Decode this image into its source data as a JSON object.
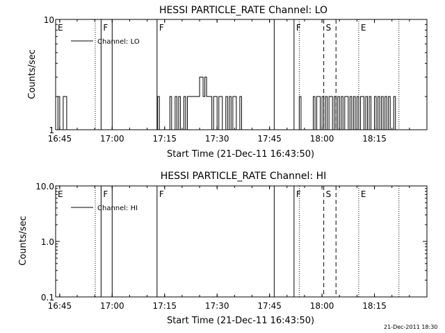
{
  "stamp": "21-Dec-2011 18:30",
  "chart_data": [
    {
      "type": "line",
      "title": "HESSI PARTICLE_RATE Channel: LO",
      "ylabel": "Counts/sec",
      "xlabel": "Start Time (21-Dec-11 16:43:50)",
      "xlim": [
        "16:43:50",
        "18:30:00"
      ],
      "ylim": [
        1,
        10
      ],
      "yscale": "log",
      "ytick_labels": [
        "1",
        "10"
      ],
      "xtick_labels": [
        "16:45",
        "17:00",
        "17:15",
        "17:30",
        "17:45",
        "18:00",
        "18:15"
      ],
      "legend": "Channel: LO",
      "flags": [
        {
          "label": "E",
          "time": "16:43:50",
          "style": "none"
        },
        {
          "label": "",
          "time": "16:55:10",
          "style": "dotted"
        },
        {
          "label": "F",
          "time": "16:56:50",
          "style": "solid"
        },
        {
          "label": "",
          "time": "17:00:00",
          "style": "solid"
        },
        {
          "label": "F",
          "time": "17:12:50",
          "style": "solid"
        },
        {
          "label": "",
          "time": "17:46:20",
          "style": "solid"
        },
        {
          "label": "F",
          "time": "17:52:00",
          "style": "solid"
        },
        {
          "label": "",
          "time": "17:53:30",
          "style": "dotted"
        },
        {
          "label": "S",
          "time": "18:00:30",
          "style": "dashed"
        },
        {
          "label": "",
          "time": "18:04:00",
          "style": "dashed"
        },
        {
          "label": "E",
          "time": "18:10:30",
          "style": "dotted"
        },
        {
          "label": "",
          "time": "18:22:00",
          "style": "dotted"
        }
      ],
      "series": [
        {
          "name": "Channel: LO",
          "x": [
            "16:44:00",
            "16:44:30",
            "16:45:00",
            "16:45:30",
            "16:46:00",
            "16:46:30",
            "16:47:00",
            "16:47:30",
            "17:12:30",
            "17:13:00",
            "17:13:30",
            "17:16:30",
            "17:17:00",
            "17:17:30",
            "17:18:00",
            "17:18:30",
            "17:19:00",
            "17:19:30",
            "17:20:00",
            "17:20:30",
            "17:21:00",
            "17:21:30",
            "17:22:00",
            "17:22:30",
            "17:23:00",
            "17:23:30",
            "17:24:00",
            "17:24:30",
            "17:25:00",
            "17:25:30",
            "17:26:00",
            "17:26:30",
            "17:27:00",
            "17:27:30",
            "17:28:00",
            "17:28:30",
            "17:29:00",
            "17:29:30",
            "17:30:00",
            "17:30:30",
            "17:31:00",
            "17:31:30",
            "17:32:00",
            "17:32:30",
            "17:33:00",
            "17:33:30",
            "17:34:00",
            "17:34:30",
            "17:35:00",
            "17:35:30",
            "17:36:00",
            "17:36:30",
            "17:37:00",
            "17:53:00",
            "17:53:30",
            "17:54:00",
            "17:57:30",
            "17:58:00",
            "17:58:30",
            "17:59:00",
            "17:59:30",
            "18:00:00",
            "18:00:30",
            "18:01:00",
            "18:01:30",
            "18:02:00",
            "18:02:30",
            "18:03:00",
            "18:03:30",
            "18:04:00",
            "18:04:30",
            "18:05:00",
            "18:05:30",
            "18:06:00",
            "18:06:30",
            "18:07:00",
            "18:07:30",
            "18:08:00",
            "18:08:30",
            "18:09:00",
            "18:09:30",
            "18:10:00",
            "18:10:30",
            "18:11:00",
            "18:11:30",
            "18:12:00",
            "18:12:30",
            "18:13:00",
            "18:13:30",
            "18:14:00",
            "18:14:30",
            "18:15:00",
            "18:15:30",
            "18:16:00",
            "18:16:30",
            "18:17:00",
            "18:17:30",
            "18:18:00",
            "18:18:30",
            "18:19:00",
            "18:19:30",
            "18:20:00",
            "18:20:30",
            "18:21:00"
          ],
          "y": [
            1,
            2,
            1,
            1,
            2,
            2,
            1,
            1,
            1,
            2,
            1,
            2,
            1,
            1,
            2,
            1,
            2,
            1,
            1,
            2,
            1,
            2,
            2,
            2,
            2,
            2,
            2,
            2,
            3,
            3,
            2,
            3,
            2,
            2,
            2,
            1,
            2,
            2,
            1,
            2,
            2,
            1,
            1,
            2,
            1,
            2,
            1,
            2,
            2,
            1,
            1,
            2,
            1,
            1,
            2,
            1,
            2,
            1,
            2,
            2,
            1,
            2,
            1,
            2,
            1,
            2,
            2,
            1,
            2,
            1,
            2,
            1,
            2,
            1,
            2,
            2,
            1,
            2,
            1,
            2,
            1,
            2,
            1,
            2,
            2,
            1,
            2,
            1,
            2,
            1,
            1,
            2,
            1,
            2,
            1,
            2,
            1,
            2,
            1,
            2,
            1,
            1,
            2,
            1
          ]
        }
      ]
    },
    {
      "type": "line",
      "title": "HESSI PARTICLE_RATE Channel: HI",
      "ylabel": "Counts/sec",
      "xlabel": "Start Time (21-Dec-11 16:43:50)",
      "xlim": [
        "16:43:50",
        "18:30:00"
      ],
      "ylim": [
        0.1,
        10.0
      ],
      "yscale": "log",
      "ytick_labels": [
        "0.1",
        "1.0",
        "10.0"
      ],
      "xtick_labels": [
        "16:45",
        "17:00",
        "17:15",
        "17:30",
        "17:45",
        "18:00",
        "18:15"
      ],
      "legend": "Channel: HI",
      "flags": [
        {
          "label": "E",
          "time": "16:43:50",
          "style": "none"
        },
        {
          "label": "",
          "time": "16:55:10",
          "style": "dotted"
        },
        {
          "label": "F",
          "time": "16:56:50",
          "style": "solid"
        },
        {
          "label": "",
          "time": "17:00:00",
          "style": "solid"
        },
        {
          "label": "F",
          "time": "17:12:50",
          "style": "solid"
        },
        {
          "label": "",
          "time": "17:46:20",
          "style": "solid"
        },
        {
          "label": "F",
          "time": "17:52:00",
          "style": "solid"
        },
        {
          "label": "",
          "time": "17:53:30",
          "style": "dotted"
        },
        {
          "label": "S",
          "time": "18:00:30",
          "style": "dashed"
        },
        {
          "label": "",
          "time": "18:04:00",
          "style": "dashed"
        },
        {
          "label": "E",
          "time": "18:10:30",
          "style": "dotted"
        },
        {
          "label": "",
          "time": "18:22:00",
          "style": "dotted"
        }
      ],
      "series": [
        {
          "name": "Channel: HI",
          "x": [],
          "y": []
        }
      ]
    }
  ]
}
